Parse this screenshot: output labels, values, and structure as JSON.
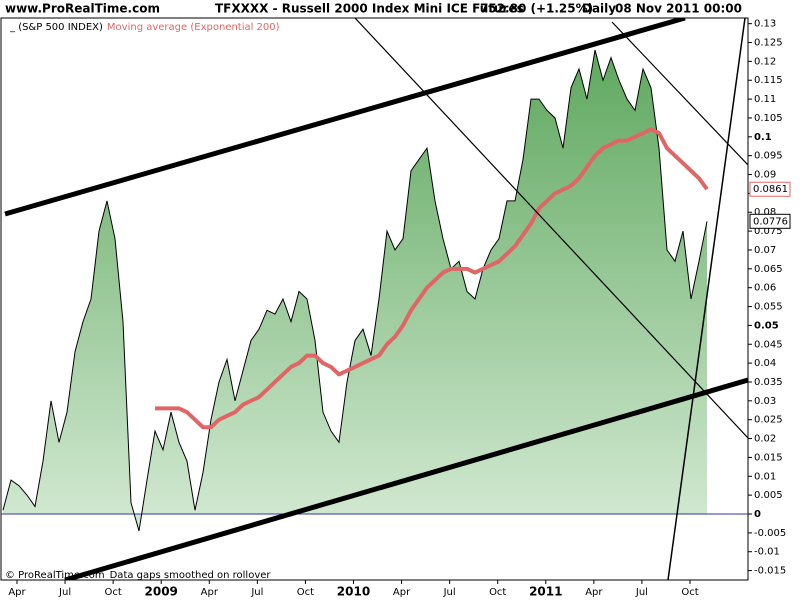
{
  "header": {
    "site": "www.ProRealTime.com",
    "instrument": "TFXXXX - Russell 2000 Index Mini ICE Futures",
    "quote": "752.80 (+1.25%)",
    "period": "Daily",
    "date": "08 Nov 2011 00:00"
  },
  "footer": {
    "copyright": "© ProRealTime.com",
    "note": "Data gaps smoothed on rollover"
  },
  "chart_data": {
    "type": "area",
    "xtick_labels": [
      "Apr",
      "Jul",
      "Oct",
      "2009",
      "Apr",
      "Jul",
      "Oct",
      "2010",
      "Apr",
      "Jul",
      "Oct",
      "2011",
      "Apr",
      "Jul",
      "Oct"
    ],
    "ylim": [
      -0.0175,
      0.1315
    ],
    "yticks": [
      0.13,
      0.125,
      0.12,
      0.115,
      0.11,
      0.105,
      0.1,
      0.095,
      0.09,
      0.085,
      0.08,
      0.075,
      0.07,
      0.065,
      0.06,
      0.055,
      0.05,
      0.045,
      0.04,
      0.035,
      0.03,
      0.025,
      0.02,
      0.015,
      0.01,
      0.005,
      0,
      -0.005,
      -0.01,
      -0.015
    ],
    "grid": false,
    "series": [
      {
        "name": "(S&P 500 INDEX)",
        "color": "#000000",
        "fill_top": "#5fa85f",
        "fill_bottom": "#d4ead4",
        "values": [
          0.001,
          0.009,
          0.0075,
          0.005,
          0.002,
          0.014,
          0.03,
          0.019,
          0.027,
          0.043,
          0.051,
          0.057,
          0.075,
          0.083,
          0.073,
          0.051,
          0.003,
          -0.0045,
          0.009,
          0.022,
          0.017,
          0.027,
          0.019,
          0.014,
          0.001,
          0.011,
          0.025,
          0.035,
          0.041,
          0.03,
          0.038,
          0.046,
          0.049,
          0.054,
          0.053,
          0.057,
          0.051,
          0.059,
          0.057,
          0.046,
          0.027,
          0.022,
          0.019,
          0.035,
          0.046,
          0.049,
          0.042,
          0.057,
          0.075,
          0.07,
          0.073,
          0.091,
          0.094,
          0.097,
          0.083,
          0.073,
          0.065,
          0.067,
          0.059,
          0.057,
          0.065,
          0.07,
          0.073,
          0.083,
          0.083,
          0.094,
          0.11,
          0.11,
          0.107,
          0.105,
          0.097,
          0.113,
          0.118,
          0.11,
          0.123,
          0.115,
          0.121,
          0.115,
          0.11,
          0.107,
          0.118,
          0.113,
          0.097,
          0.07,
          0.067,
          0.075,
          0.057,
          0.067,
          0.0776
        ]
      },
      {
        "name": "Moving average (Exponential 200)",
        "color": "#e06666",
        "values": [
          null,
          null,
          null,
          null,
          null,
          null,
          null,
          null,
          null,
          null,
          null,
          null,
          null,
          null,
          null,
          null,
          null,
          null,
          null,
          0.028,
          0.028,
          0.028,
          0.028,
          0.027,
          0.025,
          0.023,
          0.023,
          0.025,
          0.026,
          0.027,
          0.029,
          0.03,
          0.031,
          0.033,
          0.035,
          0.037,
          0.039,
          0.04,
          0.042,
          0.042,
          0.04,
          0.039,
          0.037,
          0.038,
          0.039,
          0.04,
          0.041,
          0.042,
          0.045,
          0.047,
          0.05,
          0.054,
          0.057,
          0.06,
          0.062,
          0.064,
          0.065,
          0.065,
          0.065,
          0.064,
          0.065,
          0.066,
          0.067,
          0.069,
          0.071,
          0.074,
          0.077,
          0.081,
          0.083,
          0.085,
          0.086,
          0.087,
          0.089,
          0.092,
          0.095,
          0.097,
          0.098,
          0.099,
          0.099,
          0.1,
          0.101,
          0.102,
          0.101,
          0.097,
          0.095,
          0.093,
          0.091,
          0.089,
          0.0861
        ]
      }
    ]
  }
}
